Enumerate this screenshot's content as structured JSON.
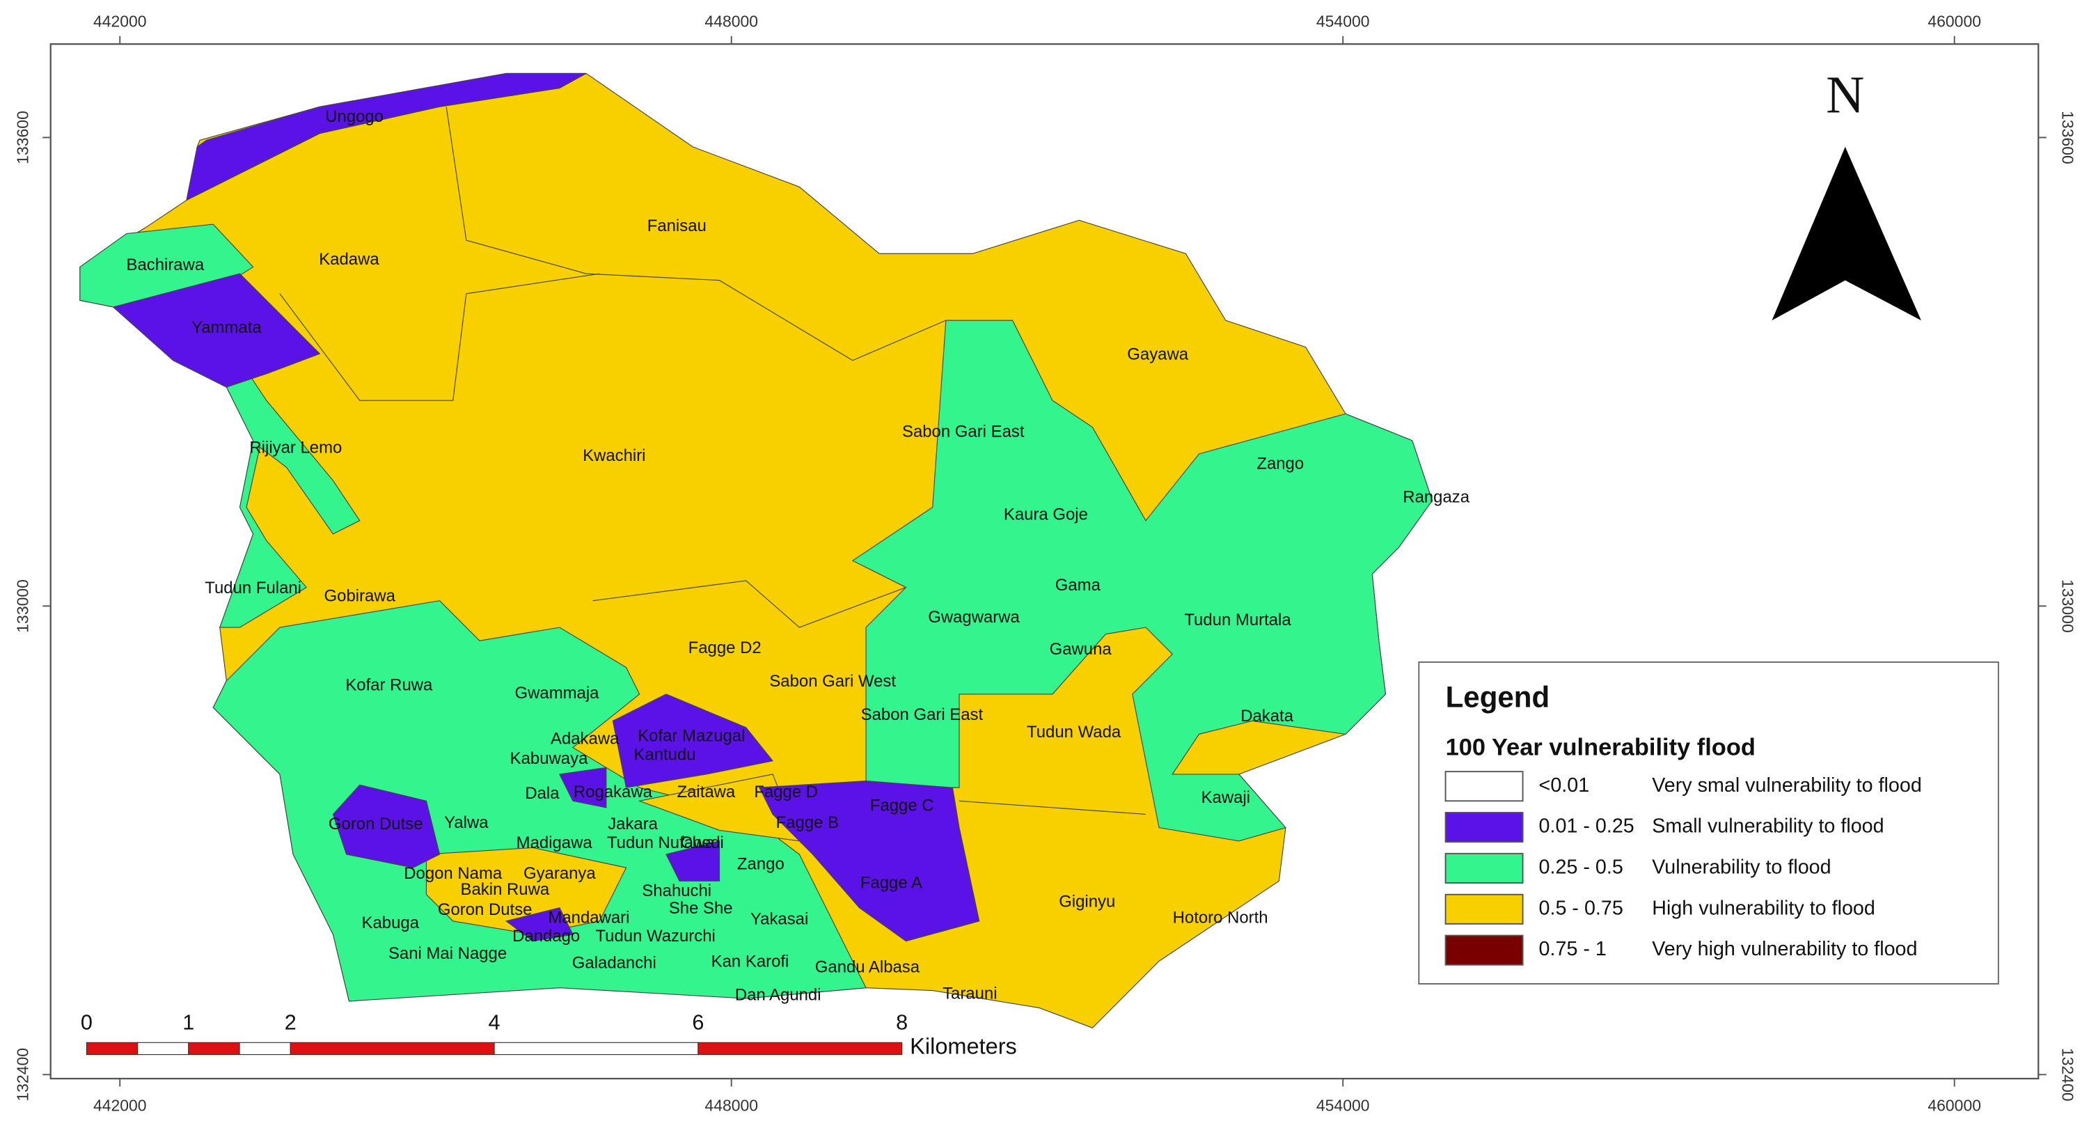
{
  "map": {
    "x_ticks": [
      442000,
      448000,
      454000,
      460000
    ],
    "y_ticks": [
      132400,
      133000,
      133600
    ],
    "north": "N",
    "legend": {
      "title": "Legend",
      "subtitle": "100 Year vulnerability flood",
      "entries": [
        {
          "range": "<0.01",
          "label": "Very smal vulnerability to flood",
          "color": "#ffffff"
        },
        {
          "range": "0.01 - 0.25",
          "label": "Small vulnerability to flood",
          "color": "#5a12e6"
        },
        {
          "range": "0.25 - 0.5",
          "label": "Vulnerability to flood",
          "color": "#34f48e"
        },
        {
          "range": "0.5 - 0.75",
          "label": "High vulnerability to flood",
          "color": "#f8d000"
        },
        {
          "range": "0.75 - 1",
          "label": "Very high vulnerability to flood",
          "color": "#7a0000"
        }
      ]
    },
    "scale_bar": {
      "ticks": [
        0,
        1,
        2,
        4,
        6,
        8
      ],
      "unit": "Kilometers"
    },
    "places": [
      "Ungogo",
      "Fanisau",
      "Bachirawa",
      "Kadawa",
      "Yammata",
      "Gayawa",
      "Sabon Gari East",
      "Rijiyar Lemo",
      "Kwachiri",
      "Zango",
      "Rangaza",
      "Kaura Goje",
      "Gama",
      "Tudun Fulani",
      "Gobirawa",
      "Gwagwarwa",
      "Tudun Murtala",
      "Gawuna",
      "Fagge D2",
      "Kofar Ruwa",
      "Sabon Gari West",
      "Gwammaja",
      "Sabon Gari East",
      "Dakata",
      "Tudun Wada",
      "Adakawa",
      "Kofar Mazugal",
      "Kabuwaya",
      "Kantudu",
      "Dala",
      "Rogakawa",
      "Zaitawa",
      "Fagge D",
      "Kawaji",
      "Fagge C",
      "Goron Dutse",
      "Yalwa",
      "Jakara",
      "Fagge B",
      "Madigawa",
      "Tudun Nufawa",
      "Chedi",
      "Dogon Nama",
      "Gyaranya",
      "Zango",
      "Fagge A",
      "Bakin Ruwa",
      "Shahuchi",
      "Giginyu",
      "Goron Dutse",
      "She She",
      "Kabuga",
      "Mandawari",
      "Yakasai",
      "Hotoro North",
      "Dandago",
      "Tudun Wazurchi",
      "Sani Mai Nagge",
      "Galadanchi",
      "Kan Karofi",
      "Gandu Albasa",
      "Dan Agundi",
      "Tarauni"
    ]
  }
}
